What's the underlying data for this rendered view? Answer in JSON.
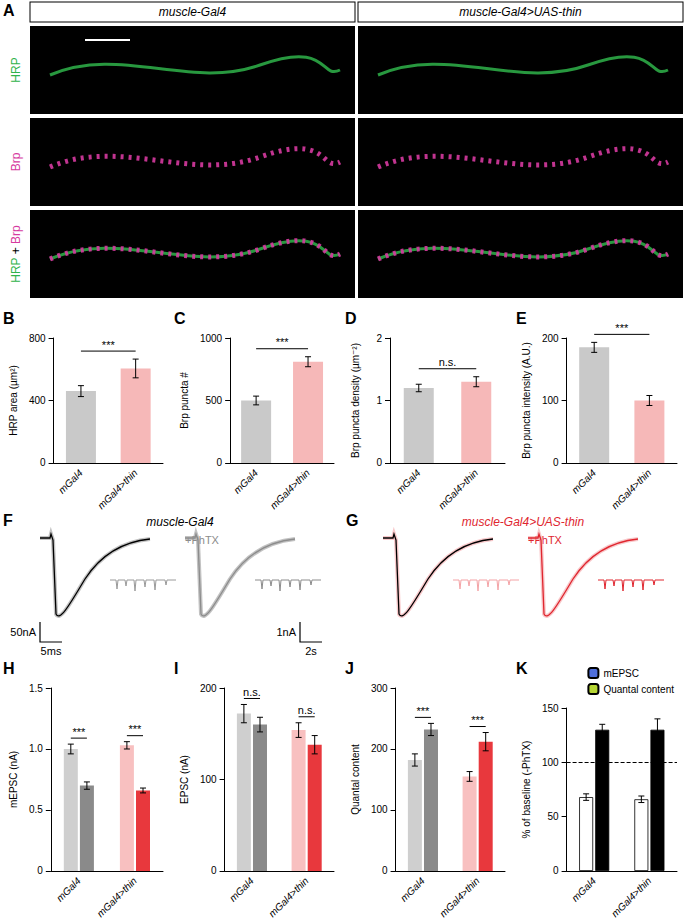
{
  "images": {
    "panel": "A",
    "columns": [
      "muscle-Gal4",
      "muscle-Gal4>UAS-thin"
    ],
    "rows": [
      "HRP",
      "Brp",
      "HRP + Brp"
    ],
    "row_colors": [
      "#2fb34a",
      "#d63aa0"
    ]
  },
  "traces": [
    {
      "panel": "F",
      "title": "muscle-Gal4",
      "color": "#000000",
      "shade": "#9a9a9a",
      "treatment": "+PhTX",
      "treatment_color": "#8c8c8c"
    },
    {
      "panel": "G",
      "title": "muscle-Gal4>UAS-thin",
      "color": "#e0262f",
      "shade": "#f4a3a6",
      "treatment": "+PhTX",
      "treatment_color": "#e0262f"
    }
  ],
  "scale_bars": [
    "50nA",
    "5ms",
    "1nA",
    "2s"
  ],
  "chart_data": [
    {
      "panel": "B",
      "type": "bar",
      "y_label": "HRP area (µm²)",
      "categories": [
        "mGal4",
        "mGal4>thin"
      ],
      "values": [
        460,
        605
      ],
      "errors": [
        35,
        60
      ],
      "colors": [
        "#c9c9c9",
        "#f6b8b8"
      ],
      "ylim": [
        0,
        800
      ],
      "yticks": [
        0,
        400,
        800
      ],
      "annotations": [
        "***"
      ]
    },
    {
      "panel": "C",
      "type": "bar",
      "y_label": "Brp puncta #",
      "categories": [
        "mGal4",
        "mGal4>thin"
      ],
      "values": [
        500,
        810
      ],
      "errors": [
        35,
        40
      ],
      "colors": [
        "#c9c9c9",
        "#f6b8b8"
      ],
      "ylim": [
        0,
        1000
      ],
      "yticks": [
        0,
        500,
        1000
      ],
      "annotations": [
        "***"
      ]
    },
    {
      "panel": "D",
      "type": "bar",
      "y_label": "Brp puncta density (µm⁻²)",
      "categories": [
        "mGal4",
        "mGal4>thin"
      ],
      "values": [
        1.2,
        1.3
      ],
      "errors": [
        0.06,
        0.08
      ],
      "colors": [
        "#c9c9c9",
        "#f6b8b8"
      ],
      "ylim": [
        0,
        2
      ],
      "yticks": [
        0,
        1,
        2
      ],
      "annotations": [
        "n.s."
      ]
    },
    {
      "panel": "E",
      "type": "bar",
      "y_label": "Brp puncta intensity (A.U.)",
      "categories": [
        "mGal4",
        "mGal4>thin"
      ],
      "values": [
        185,
        100
      ],
      "errors": [
        8,
        8
      ],
      "colors": [
        "#c9c9c9",
        "#f6b8b8"
      ],
      "ylim": [
        0,
        200
      ],
      "yticks": [
        0,
        100,
        200
      ],
      "annotations": [
        "***"
      ]
    },
    {
      "panel": "H",
      "type": "bar",
      "y_label": "mEPSC (nA)",
      "categories": [
        "mGal4",
        "mGal4>thin"
      ],
      "series": [
        {
          "values": [
            1.0,
            1.03
          ],
          "errors": [
            0.04,
            0.03
          ],
          "colors": [
            "#cfcfcf",
            "#f8c0c0"
          ]
        },
        {
          "values": [
            0.7,
            0.66
          ],
          "errors": [
            0.03,
            0.02
          ],
          "colors": [
            "#8a8a8a",
            "#e8383d"
          ]
        }
      ],
      "ylim": [
        0,
        1.5
      ],
      "yticks": [
        0,
        0.5,
        {
          "value": 1,
          "label": "1.0"
        },
        1.5
      ],
      "annotations": [
        "***",
        "***"
      ]
    },
    {
      "panel": "I",
      "type": "bar",
      "y_label": "EPSC (nA)",
      "categories": [
        "mGal4",
        "mGal4>thin"
      ],
      "series": [
        {
          "values": [
            172,
            154
          ],
          "errors": [
            10,
            8
          ],
          "colors": [
            "#cfcfcf",
            "#f8c0c0"
          ]
        },
        {
          "values": [
            160,
            138
          ],
          "errors": [
            8,
            10
          ],
          "colors": [
            "#8a8a8a",
            "#e8383d"
          ]
        }
      ],
      "ylim": [
        0,
        200
      ],
      "yticks": [
        0,
        100,
        200
      ],
      "annotations": [
        "n.s.",
        "n.s."
      ]
    },
    {
      "panel": "J",
      "type": "bar",
      "y_label": "Quantal content",
      "categories": [
        "mGal4",
        "mGal4>thin"
      ],
      "series": [
        {
          "values": [
            182,
            155
          ],
          "errors": [
            10,
            8
          ],
          "colors": [
            "#cfcfcf",
            "#f8c0c0"
          ]
        },
        {
          "values": [
            232,
            212
          ],
          "errors": [
            10,
            15
          ],
          "colors": [
            "#8a8a8a",
            "#e8383d"
          ]
        }
      ],
      "ylim": [
        0,
        300
      ],
      "yticks": [
        0,
        100,
        200,
        300
      ],
      "annotations": [
        "***",
        "***"
      ]
    },
    {
      "panel": "K",
      "type": "bar",
      "y_label": "% of baseline (-PhTX)",
      "categories": [
        "mGal4",
        "mGal4>thin"
      ],
      "series": [
        {
          "name": "mEPSC",
          "color": "#ffffff",
          "values": [
            68,
            66
          ],
          "errors": [
            3,
            3
          ]
        },
        {
          "name": "Quantal content",
          "color": "#000000",
          "values": [
            130,
            130
          ],
          "errors": [
            5,
            10
          ]
        }
      ],
      "ylim": [
        0,
        150
      ],
      "yticks": [
        0,
        50,
        100,
        150
      ],
      "hline": 100,
      "legend": "top-right"
    }
  ]
}
